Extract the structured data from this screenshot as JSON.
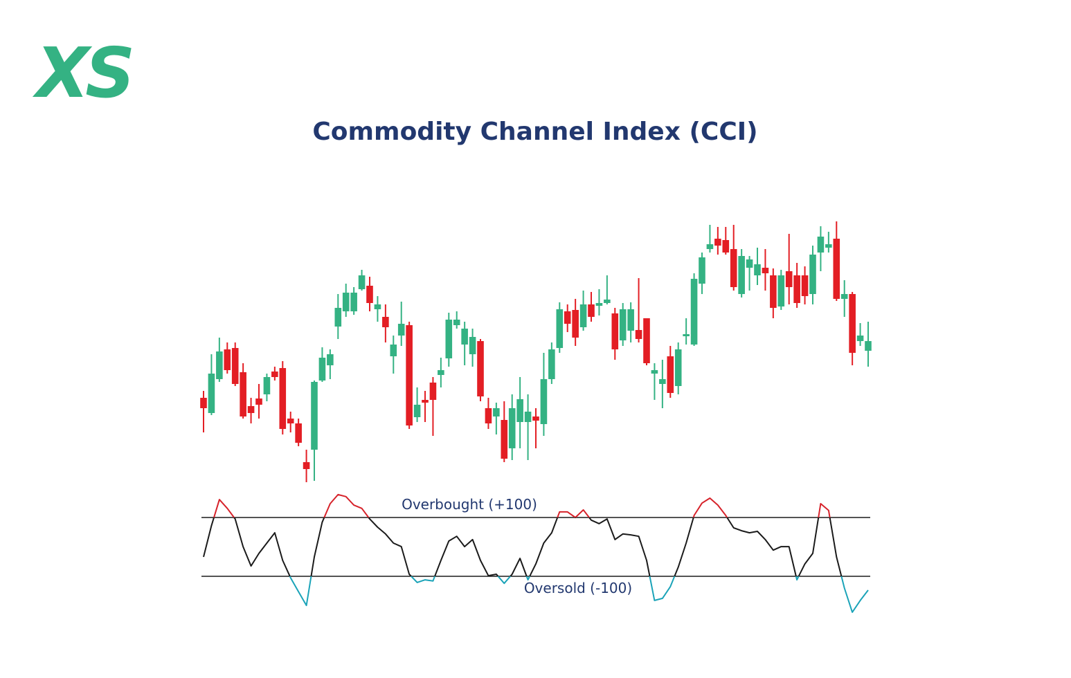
{
  "logo": "XS",
  "chart_data": [
    {
      "type": "candlestick",
      "title": "Commodity Channel Index (CCI)",
      "up_color": "#34b283",
      "down_color": "#e31e24",
      "open": [
        125,
        103,
        152,
        195,
        197,
        162,
        113,
        124,
        130,
        163,
        168,
        95,
        88,
        32,
        50,
        150,
        172,
        228,
        250,
        250,
        282,
        287,
        253,
        242,
        185,
        215,
        230,
        97,
        122,
        147,
        158,
        182,
        230,
        202,
        188,
        207,
        110,
        98,
        93,
        52,
        90,
        90,
        98,
        87,
        152,
        197,
        250,
        252,
        227,
        260,
        258,
        262,
        247,
        208,
        222,
        223,
        240,
        160,
        145,
        185,
        142,
        214,
        202,
        290,
        340,
        355,
        353,
        340,
        275,
        313,
        302,
        313,
        302,
        257,
        308,
        302,
        302,
        275,
        335,
        342,
        355,
        268,
        275,
        207,
        193
      ],
      "high": [
        135,
        188,
        212,
        205,
        205,
        175,
        125,
        145,
        160,
        170,
        178,
        105,
        95,
        50,
        150,
        198,
        195,
        275,
        290,
        285,
        310,
        300,
        272,
        260,
        215,
        264,
        235,
        140,
        135,
        155,
        183,
        248,
        250,
        235,
        225,
        210,
        125,
        118,
        120,
        130,
        155,
        130,
        110,
        190,
        205,
        263,
        260,
        268,
        280,
        278,
        282,
        302,
        255,
        262,
        263,
        298,
        240,
        175,
        180,
        200,
        205,
        240,
        305,
        335,
        375,
        372,
        372,
        375,
        340,
        330,
        342,
        340,
        312,
        310,
        362,
        320,
        315,
        345,
        373,
        365,
        380,
        295,
        278,
        233,
        235
      ],
      "low": [
        75,
        100,
        148,
        160,
        142,
        95,
        88,
        95,
        120,
        150,
        72,
        75,
        55,
        3,
        5,
        148,
        152,
        210,
        242,
        245,
        280,
        250,
        235,
        205,
        160,
        200,
        80,
        90,
        90,
        70,
        140,
        170,
        225,
        172,
        170,
        120,
        80,
        72,
        32,
        35,
        52,
        35,
        52,
        70,
        145,
        190,
        220,
        200,
        222,
        235,
        244,
        260,
        180,
        200,
        205,
        205,
        172,
        122,
        110,
        125,
        130,
        202,
        200,
        275,
        335,
        332,
        332,
        280,
        270,
        280,
        288,
        280,
        240,
        252,
        260,
        255,
        260,
        260,
        308,
        335,
        265,
        242,
        172,
        200,
        170
      ],
      "close": [
        110,
        160,
        192,
        165,
        145,
        98,
        103,
        115,
        155,
        155,
        80,
        88,
        60,
        22,
        148,
        183,
        188,
        255,
        277,
        277,
        302,
        262,
        260,
        227,
        202,
        232,
        85,
        115,
        118,
        122,
        165,
        238,
        238,
        225,
        213,
        127,
        88,
        110,
        37,
        110,
        123,
        105,
        92,
        152,
        195,
        253,
        232,
        212,
        260,
        242,
        262,
        267,
        195,
        253,
        253,
        210,
        175,
        165,
        152,
        132,
        195,
        217,
        297,
        328,
        347,
        345,
        335,
        285,
        330,
        325,
        318,
        305,
        255,
        302,
        285,
        262,
        272,
        332,
        358,
        347,
        268,
        275,
        190,
        215,
        207
      ]
    },
    {
      "type": "line",
      "color": "#1a1a1a",
      "overbought_color": "#d6222a",
      "oversold_color": "#1aa3b8",
      "values": [
        -34,
        72,
        161,
        131,
        95,
        1,
        -65,
        -22,
        13,
        48,
        -46,
        -105,
        -152,
        -199,
        -34,
        84,
        147,
        178,
        171,
        142,
        131,
        95,
        67,
        44,
        13,
        1,
        -93,
        -121,
        -112,
        -116,
        -46,
        20,
        36,
        1,
        25,
        -46,
        -98,
        -93,
        -124,
        -93,
        -39,
        -112,
        -58,
        13,
        48,
        119,
        119,
        100,
        126,
        91,
        79,
        95,
        25,
        44,
        41,
        36,
        -46,
        -182,
        -175,
        -135,
        -69,
        13,
        107,
        149,
        166,
        142,
        107,
        65,
        55,
        48,
        53,
        25,
        -11,
        1,
        1,
        -112,
        -58,
        -22,
        147,
        124,
        -34,
        -140,
        -222,
        -182,
        -147
      ],
      "levels": [
        {
          "value": 100,
          "label": "Overbought (+100)"
        },
        {
          "value": -100,
          "label": "Oversold (-100)"
        }
      ]
    }
  ]
}
